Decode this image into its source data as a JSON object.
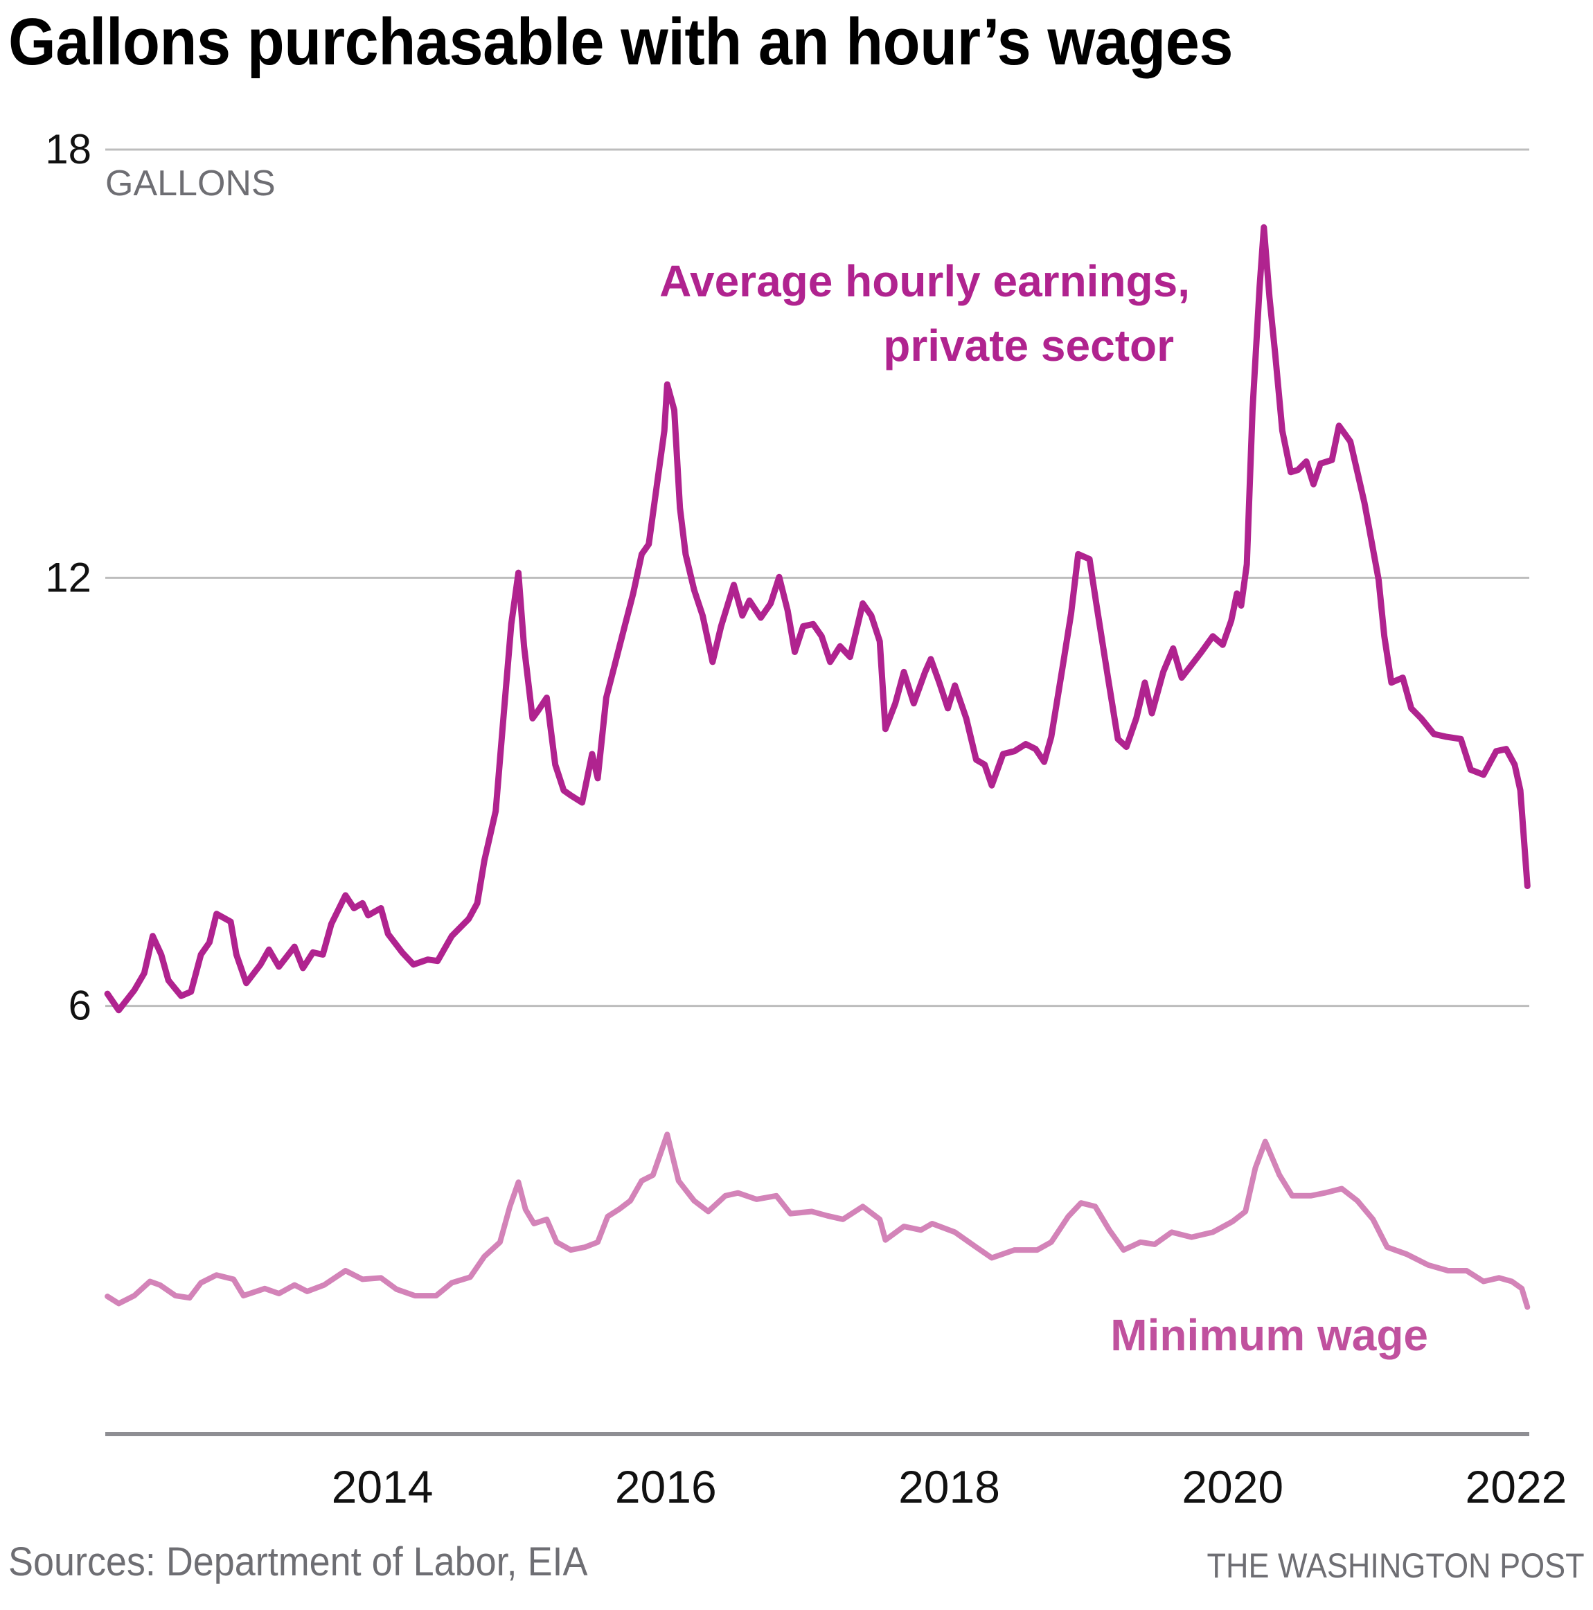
{
  "chart_data": {
    "type": "line",
    "title": "Gallons purchasable with an hour’s wages",
    "ylabel": "GALLONS",
    "xlabel": "",
    "ylim": [
      0,
      18
    ],
    "xlim": [
      2012.045,
      2022.093
    ],
    "grid": true,
    "yticks": [
      {
        "value": 18,
        "label": "18"
      },
      {
        "value": 12,
        "label": "12"
      },
      {
        "value": 6,
        "label": "6"
      }
    ],
    "xticks": [
      {
        "value": 2014,
        "label": "2014"
      },
      {
        "value": 2016,
        "label": "2016"
      },
      {
        "value": 2018,
        "label": "2018"
      },
      {
        "value": 2020,
        "label": "2020"
      },
      {
        "value": 2022,
        "label": "2022"
      }
    ],
    "series": [
      {
        "name": "Average hourly earnings, private sector",
        "label_lines": [
          "Average hourly earnings,",
          "private sector"
        ],
        "color": "#b0238f",
        "points": [
          [
            2012.06,
            6.17
          ],
          [
            2012.14,
            5.94
          ],
          [
            2012.25,
            6.22
          ],
          [
            2012.32,
            6.46
          ],
          [
            2012.38,
            6.98
          ],
          [
            2012.44,
            6.72
          ],
          [
            2012.49,
            6.36
          ],
          [
            2012.58,
            6.14
          ],
          [
            2012.65,
            6.2
          ],
          [
            2012.72,
            6.72
          ],
          [
            2012.78,
            6.89
          ],
          [
            2012.83,
            7.29
          ],
          [
            2012.93,
            7.18
          ],
          [
            2012.97,
            6.72
          ],
          [
            2013.04,
            6.32
          ],
          [
            2013.14,
            6.58
          ],
          [
            2013.2,
            6.79
          ],
          [
            2013.27,
            6.55
          ],
          [
            2013.38,
            6.83
          ],
          [
            2013.44,
            6.53
          ],
          [
            2013.51,
            6.75
          ],
          [
            2013.58,
            6.72
          ],
          [
            2013.64,
            7.15
          ],
          [
            2013.74,
            7.55
          ],
          [
            2013.8,
            7.37
          ],
          [
            2013.86,
            7.44
          ],
          [
            2013.9,
            7.27
          ],
          [
            2013.99,
            7.37
          ],
          [
            2014.04,
            7.01
          ],
          [
            2014.14,
            6.75
          ],
          [
            2014.22,
            6.58
          ],
          [
            2014.32,
            6.65
          ],
          [
            2014.39,
            6.63
          ],
          [
            2014.49,
            6.98
          ],
          [
            2014.61,
            7.22
          ],
          [
            2014.67,
            7.44
          ],
          [
            2014.72,
            8.04
          ],
          [
            2014.8,
            8.73
          ],
          [
            2014.86,
            10.17
          ],
          [
            2014.91,
            11.35
          ],
          [
            2014.96,
            12.07
          ],
          [
            2015.0,
            11.04
          ],
          [
            2015.06,
            10.03
          ],
          [
            2015.1,
            10.14
          ],
          [
            2015.16,
            10.32
          ],
          [
            2015.22,
            9.38
          ],
          [
            2015.28,
            9.02
          ],
          [
            2015.33,
            8.95
          ],
          [
            2015.41,
            8.85
          ],
          [
            2015.48,
            9.53
          ],
          [
            2015.52,
            9.19
          ],
          [
            2015.58,
            10.32
          ],
          [
            2015.64,
            10.78
          ],
          [
            2015.71,
            11.32
          ],
          [
            2015.77,
            11.78
          ],
          [
            2015.83,
            12.33
          ],
          [
            2015.88,
            12.47
          ],
          [
            2015.94,
            13.34
          ],
          [
            2015.99,
            14.06
          ],
          [
            2016.01,
            14.71
          ],
          [
            2016.06,
            14.35
          ],
          [
            2016.1,
            12.98
          ],
          [
            2016.14,
            12.33
          ],
          [
            2016.2,
            11.83
          ],
          [
            2016.26,
            11.47
          ],
          [
            2016.33,
            10.82
          ],
          [
            2016.39,
            11.32
          ],
          [
            2016.48,
            11.9
          ],
          [
            2016.54,
            11.47
          ],
          [
            2016.59,
            11.68
          ],
          [
            2016.67,
            11.44
          ],
          [
            2016.74,
            11.64
          ],
          [
            2016.8,
            12.01
          ],
          [
            2016.86,
            11.54
          ],
          [
            2016.91,
            10.96
          ],
          [
            2016.97,
            11.32
          ],
          [
            2017.04,
            11.35
          ],
          [
            2017.1,
            11.18
          ],
          [
            2017.16,
            10.82
          ],
          [
            2017.23,
            11.04
          ],
          [
            2017.3,
            10.89
          ],
          [
            2017.39,
            11.64
          ],
          [
            2017.45,
            11.47
          ],
          [
            2017.51,
            11.11
          ],
          [
            2017.55,
            9.88
          ],
          [
            2017.62,
            10.24
          ],
          [
            2017.68,
            10.68
          ],
          [
            2017.75,
            10.24
          ],
          [
            2017.83,
            10.68
          ],
          [
            2017.87,
            10.86
          ],
          [
            2017.93,
            10.53
          ],
          [
            2017.99,
            10.17
          ],
          [
            2018.04,
            10.49
          ],
          [
            2018.12,
            10.03
          ],
          [
            2018.19,
            9.45
          ],
          [
            2018.25,
            9.38
          ],
          [
            2018.3,
            9.09
          ],
          [
            2018.38,
            9.53
          ],
          [
            2018.46,
            9.57
          ],
          [
            2018.54,
            9.67
          ],
          [
            2018.61,
            9.6
          ],
          [
            2018.67,
            9.42
          ],
          [
            2018.72,
            9.77
          ],
          [
            2018.8,
            10.75
          ],
          [
            2018.86,
            11.5
          ],
          [
            2018.91,
            12.33
          ],
          [
            2018.99,
            12.26
          ],
          [
            2019.04,
            11.61
          ],
          [
            2019.12,
            10.6
          ],
          [
            2019.19,
            9.74
          ],
          [
            2019.25,
            9.63
          ],
          [
            2019.32,
            10.03
          ],
          [
            2019.38,
            10.53
          ],
          [
            2019.43,
            10.1
          ],
          [
            2019.51,
            10.68
          ],
          [
            2019.58,
            11.01
          ],
          [
            2019.64,
            10.6
          ],
          [
            2019.71,
            10.78
          ],
          [
            2019.78,
            10.96
          ],
          [
            2019.86,
            11.18
          ],
          [
            2019.93,
            11.06
          ],
          [
            2019.99,
            11.4
          ],
          [
            2020.03,
            11.78
          ],
          [
            2020.06,
            11.61
          ],
          [
            2020.1,
            12.19
          ],
          [
            2020.14,
            14.35
          ],
          [
            2020.19,
            16.07
          ],
          [
            2020.22,
            16.91
          ],
          [
            2020.26,
            15.93
          ],
          [
            2020.3,
            15.14
          ],
          [
            2020.35,
            14.06
          ],
          [
            2020.41,
            13.48
          ],
          [
            2020.46,
            13.51
          ],
          [
            2020.52,
            13.63
          ],
          [
            2020.57,
            13.31
          ],
          [
            2020.62,
            13.6
          ],
          [
            2020.7,
            13.65
          ],
          [
            2020.75,
            14.13
          ],
          [
            2020.83,
            13.91
          ],
          [
            2020.88,
            13.48
          ],
          [
            2020.93,
            13.05
          ],
          [
            2020.97,
            12.62
          ],
          [
            2021.03,
            11.97
          ],
          [
            2021.07,
            11.18
          ],
          [
            2021.12,
            10.53
          ],
          [
            2021.2,
            10.6
          ],
          [
            2021.26,
            10.17
          ],
          [
            2021.33,
            10.03
          ],
          [
            2021.42,
            9.81
          ],
          [
            2021.51,
            9.77
          ],
          [
            2021.61,
            9.74
          ],
          [
            2021.68,
            9.31
          ],
          [
            2021.77,
            9.24
          ],
          [
            2021.86,
            9.57
          ],
          [
            2021.93,
            9.6
          ],
          [
            2021.99,
            9.38
          ],
          [
            2022.03,
            9.02
          ],
          [
            2022.08,
            7.68
          ]
        ]
      },
      {
        "name": "Minimum wage",
        "label_lines": [
          "Minimum wage"
        ],
        "color": "#d383b8",
        "label_color": "#c0519e",
        "points": [
          [
            2012.06,
            1.93
          ],
          [
            2012.14,
            1.83
          ],
          [
            2012.25,
            1.94
          ],
          [
            2012.36,
            2.14
          ],
          [
            2012.43,
            2.09
          ],
          [
            2012.54,
            1.94
          ],
          [
            2012.64,
            1.91
          ],
          [
            2012.72,
            2.12
          ],
          [
            2012.83,
            2.23
          ],
          [
            2012.95,
            2.17
          ],
          [
            2013.02,
            1.94
          ],
          [
            2013.17,
            2.04
          ],
          [
            2013.27,
            1.97
          ],
          [
            2013.38,
            2.09
          ],
          [
            2013.47,
            2.0
          ],
          [
            2013.59,
            2.09
          ],
          [
            2013.74,
            2.29
          ],
          [
            2013.86,
            2.17
          ],
          [
            2013.99,
            2.19
          ],
          [
            2014.1,
            2.03
          ],
          [
            2014.23,
            1.94
          ],
          [
            2014.38,
            1.94
          ],
          [
            2014.49,
            2.12
          ],
          [
            2014.62,
            2.2
          ],
          [
            2014.72,
            2.49
          ],
          [
            2014.83,
            2.69
          ],
          [
            2014.9,
            3.19
          ],
          [
            2014.96,
            3.53
          ],
          [
            2015.01,
            3.15
          ],
          [
            2015.07,
            2.95
          ],
          [
            2015.16,
            3.01
          ],
          [
            2015.23,
            2.69
          ],
          [
            2015.33,
            2.58
          ],
          [
            2015.43,
            2.62
          ],
          [
            2015.52,
            2.69
          ],
          [
            2015.59,
            3.05
          ],
          [
            2015.67,
            3.15
          ],
          [
            2015.75,
            3.27
          ],
          [
            2015.83,
            3.55
          ],
          [
            2015.91,
            3.63
          ],
          [
            2016.01,
            4.2
          ],
          [
            2016.09,
            3.55
          ],
          [
            2016.2,
            3.27
          ],
          [
            2016.3,
            3.12
          ],
          [
            2016.42,
            3.34
          ],
          [
            2016.51,
            3.38
          ],
          [
            2016.64,
            3.29
          ],
          [
            2016.78,
            3.34
          ],
          [
            2016.88,
            3.09
          ],
          [
            2017.03,
            3.12
          ],
          [
            2017.14,
            3.06
          ],
          [
            2017.25,
            3.01
          ],
          [
            2017.39,
            3.19
          ],
          [
            2017.51,
            3.01
          ],
          [
            2017.55,
            2.72
          ],
          [
            2017.68,
            2.91
          ],
          [
            2017.8,
            2.86
          ],
          [
            2017.88,
            2.95
          ],
          [
            2018.04,
            2.83
          ],
          [
            2018.19,
            2.62
          ],
          [
            2018.3,
            2.47
          ],
          [
            2018.46,
            2.58
          ],
          [
            2018.62,
            2.58
          ],
          [
            2018.72,
            2.69
          ],
          [
            2018.84,
            3.05
          ],
          [
            2018.93,
            3.24
          ],
          [
            2019.03,
            3.19
          ],
          [
            2019.13,
            2.86
          ],
          [
            2019.23,
            2.58
          ],
          [
            2019.35,
            2.69
          ],
          [
            2019.45,
            2.66
          ],
          [
            2019.57,
            2.83
          ],
          [
            2019.71,
            2.76
          ],
          [
            2019.86,
            2.83
          ],
          [
            2020.0,
            2.98
          ],
          [
            2020.09,
            3.12
          ],
          [
            2020.16,
            3.73
          ],
          [
            2020.23,
            4.1
          ],
          [
            2020.33,
            3.63
          ],
          [
            2020.42,
            3.34
          ],
          [
            2020.55,
            3.34
          ],
          [
            2020.65,
            3.38
          ],
          [
            2020.77,
            3.44
          ],
          [
            2020.88,
            3.27
          ],
          [
            2020.99,
            3.01
          ],
          [
            2021.09,
            2.62
          ],
          [
            2021.23,
            2.52
          ],
          [
            2021.38,
            2.37
          ],
          [
            2021.52,
            2.29
          ],
          [
            2021.65,
            2.29
          ],
          [
            2021.77,
            2.14
          ],
          [
            2021.88,
            2.19
          ],
          [
            2021.97,
            2.14
          ],
          [
            2022.04,
            2.04
          ],
          [
            2022.08,
            1.78
          ]
        ]
      }
    ]
  },
  "footer": {
    "source": "Sources: Department of Labor, EIA",
    "credit": "THE WASHINGTON POST"
  }
}
